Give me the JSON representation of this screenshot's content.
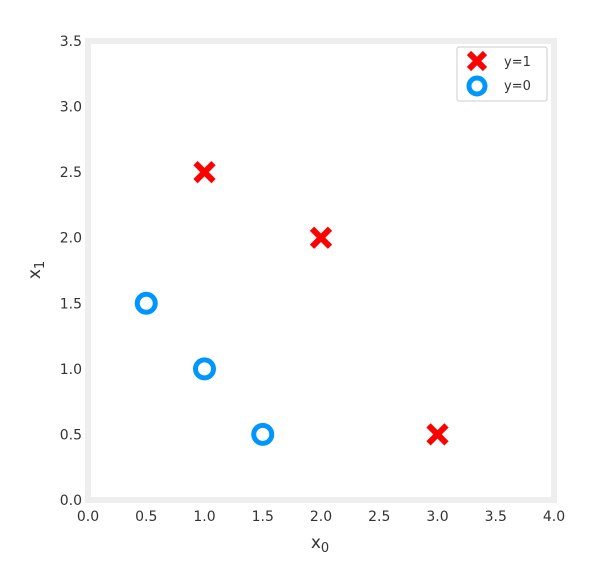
{
  "chart_data": {
    "type": "scatter",
    "title": "",
    "xlabel": "x",
    "xlabel_sub": "0",
    "ylabel": "x",
    "ylabel_sub": "1",
    "xlim": [
      0.0,
      4.0
    ],
    "ylim": [
      0.0,
      3.5
    ],
    "xticks": [
      "0.0",
      "0.5",
      "1.0",
      "1.5",
      "2.0",
      "2.5",
      "3.0",
      "3.5",
      "4.0"
    ],
    "yticks": [
      "0.0",
      "0.5",
      "1.0",
      "1.5",
      "2.0",
      "2.5",
      "3.0",
      "3.5"
    ],
    "grid": false,
    "legend_position": "top-right",
    "series": [
      {
        "name": "y=1",
        "marker": "x",
        "color": "#ff0000",
        "points": [
          {
            "x": 1.0,
            "y": 2.5
          },
          {
            "x": 2.0,
            "y": 2.0
          },
          {
            "x": 3.0,
            "y": 0.5
          }
        ]
      },
      {
        "name": "y=0",
        "marker": "o",
        "color": "#0096ff",
        "points": [
          {
            "x": 0.5,
            "y": 1.5
          },
          {
            "x": 1.0,
            "y": 1.0
          },
          {
            "x": 1.5,
            "y": 0.5
          }
        ]
      }
    ]
  }
}
